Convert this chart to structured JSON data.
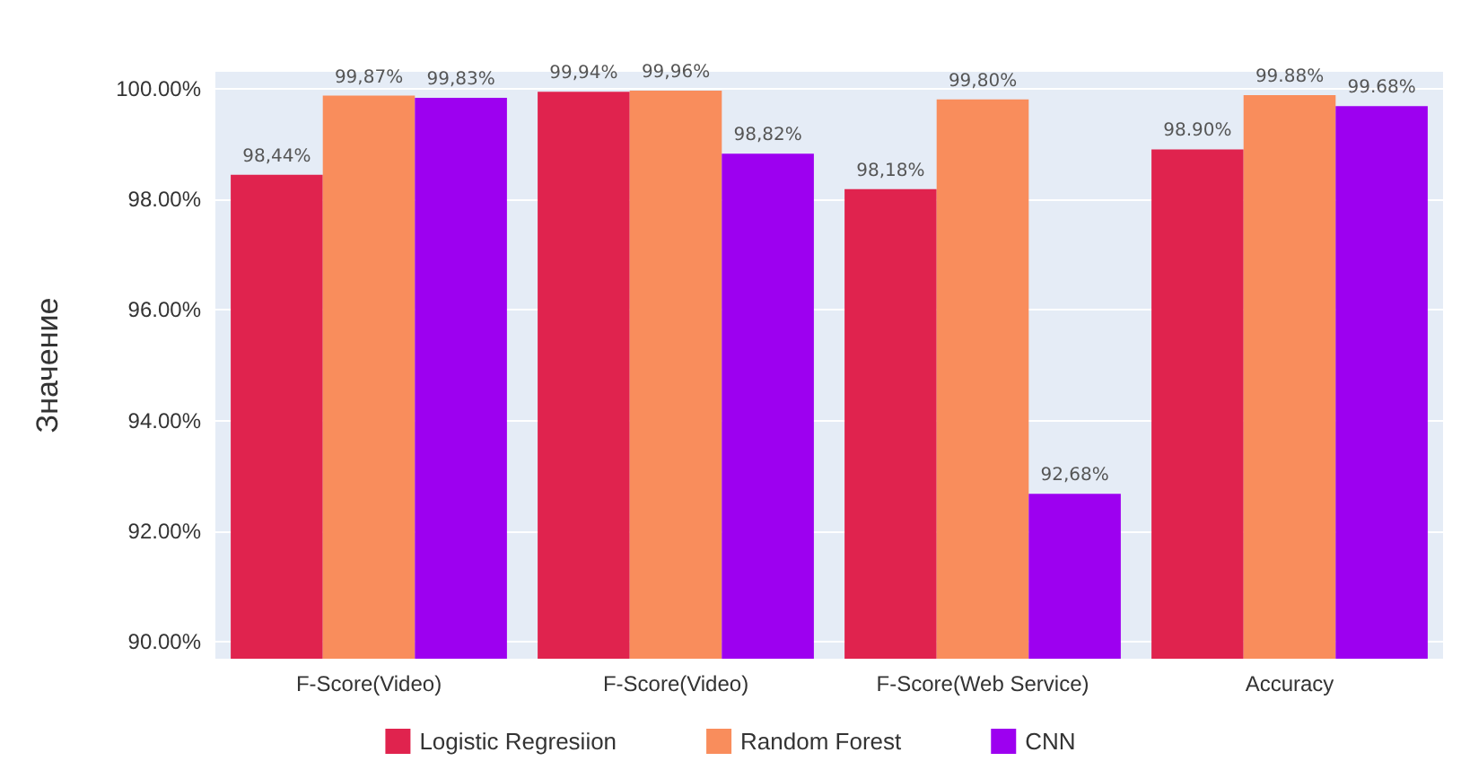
{
  "chart_data": {
    "type": "bar",
    "ylabel": "Значение",
    "categories": [
      "F-Score(Video)",
      "F-Score(Video)",
      "F-Score(Web Service)",
      "Accuracy"
    ],
    "series": [
      {
        "name": "Logistic Regresiion",
        "color": "#e0234e",
        "values": [
          98.44,
          99.94,
          98.18,
          98.9
        ],
        "value_labels": [
          "98,44%",
          "99,94%",
          "98,18%",
          "98.90%"
        ]
      },
      {
        "name": "Random Forest",
        "color": "#f98d5c",
        "values": [
          99.87,
          99.96,
          99.8,
          99.88
        ],
        "value_labels": [
          "99,87%",
          "99,96%",
          "99,80%",
          "99.88%"
        ]
      },
      {
        "name": "CNN",
        "color": "#9d00f0",
        "values": [
          99.83,
          98.82,
          92.68,
          99.68
        ],
        "value_labels": [
          "99,83%",
          "98,82%",
          "92,68%",
          "99.68%"
        ]
      }
    ],
    "ylim": [
      89.7,
      100.3
    ],
    "yticks": [
      {
        "value": 90,
        "label": "90.00%"
      },
      {
        "value": 92,
        "label": "92.00%"
      },
      {
        "value": 94,
        "label": "94.00%"
      },
      {
        "value": 96,
        "label": "96.00%"
      },
      {
        "value": 98,
        "label": "98.00%"
      },
      {
        "value": 100,
        "label": "100.00%"
      }
    ],
    "grid": "y",
    "legend": "bottom"
  }
}
